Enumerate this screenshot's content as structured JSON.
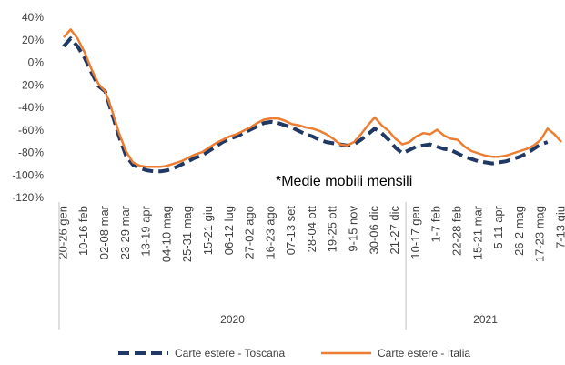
{
  "chart_data": {
    "type": "line",
    "annotation": "*Medie mobili mensili",
    "categories": [
      "20-26 gen",
      null,
      null,
      "10-16 feb",
      null,
      null,
      "02-08 mar",
      null,
      null,
      "23-29 mar",
      null,
      null,
      "13-19 apr",
      null,
      null,
      "04-10 mag",
      null,
      null,
      "25-31 mag",
      null,
      null,
      "15-21 giu",
      null,
      null,
      "06-12 lug",
      null,
      null,
      "27-02 ago",
      null,
      null,
      "16-23 ago",
      null,
      null,
      "07-13 set",
      null,
      null,
      "28-04 ott",
      null,
      null,
      "19-25 ott",
      null,
      null,
      "9-15 nov",
      null,
      null,
      "30-06 dic",
      null,
      null,
      "21-27 dic",
      null,
      null,
      "10-17 gen",
      null,
      null,
      "1-7 feb",
      null,
      null,
      "22-28 feb",
      null,
      null,
      "15-21 mar",
      null,
      null,
      "5-11 apr",
      null,
      null,
      "26-2 mag",
      null,
      null,
      "17-23 mag",
      null,
      null,
      "7-13 giu"
    ],
    "groups": [
      {
        "label": "2020",
        "first": 0
      },
      {
        "label": "2021",
        "first": 50
      }
    ],
    "series": [
      {
        "name": "Carte estere  - Toscana",
        "color": "#203864",
        "dashed": true,
        "values": [
          15,
          22,
          15,
          5,
          -8,
          -20,
          -25,
          -45,
          -65,
          -82,
          -90,
          -93,
          -95,
          -96,
          -96,
          -95,
          -93,
          -90,
          -87,
          -84,
          -82,
          -78,
          -74,
          -70,
          -67,
          -65,
          -62,
          -59,
          -56,
          -53,
          -52,
          -53,
          -55,
          -57,
          -60,
          -63,
          -65,
          -68,
          -70,
          -71,
          -72,
          -73,
          -72,
          -68,
          -63,
          -58,
          -62,
          -68,
          -75,
          -80,
          -77,
          -74,
          -73,
          -72,
          -74,
          -76,
          -77,
          -80,
          -83,
          -85,
          -87,
          -88,
          -89,
          -88,
          -87,
          -85,
          -83,
          -80,
          -76,
          -72,
          -70,
          null,
          null
        ]
      },
      {
        "name": "Carte estere  - Italia",
        "color": "#ed7d31",
        "dashed": false,
        "values": [
          23,
          30,
          22,
          10,
          -5,
          -18,
          -25,
          -42,
          -62,
          -78,
          -88,
          -91,
          -92,
          -92,
          -92,
          -91,
          -89,
          -87,
          -84,
          -81,
          -79,
          -75,
          -71,
          -68,
          -65,
          -63,
          -60,
          -57,
          -53,
          -50,
          -49,
          -49,
          -51,
          -54,
          -55,
          -57,
          -58,
          -60,
          -63,
          -67,
          -72,
          -73,
          -70,
          -63,
          -55,
          -48,
          -55,
          -60,
          -67,
          -72,
          -70,
          -65,
          -62,
          -63,
          -59,
          -64,
          -67,
          -68,
          -74,
          -78,
          -80,
          -82,
          -83,
          -83,
          -82,
          -80,
          -78,
          -76,
          -73,
          -68,
          -58,
          -63,
          -70
        ]
      }
    ],
    "ylim": [
      -120,
      40
    ],
    "yticks": [
      {
        "value": -120,
        "label": "-120%"
      },
      {
        "value": -100,
        "label": "-100%"
      },
      {
        "value": -80,
        "label": "-80%"
      },
      {
        "value": -60,
        "label": "-60%"
      },
      {
        "value": -40,
        "label": "-40%"
      },
      {
        "value": -20,
        "label": "-20%"
      },
      {
        "value": 0,
        "label": "0%"
      },
      {
        "value": 20,
        "label": "20%"
      },
      {
        "value": 40,
        "label": "40%"
      }
    ],
    "grid": false
  }
}
